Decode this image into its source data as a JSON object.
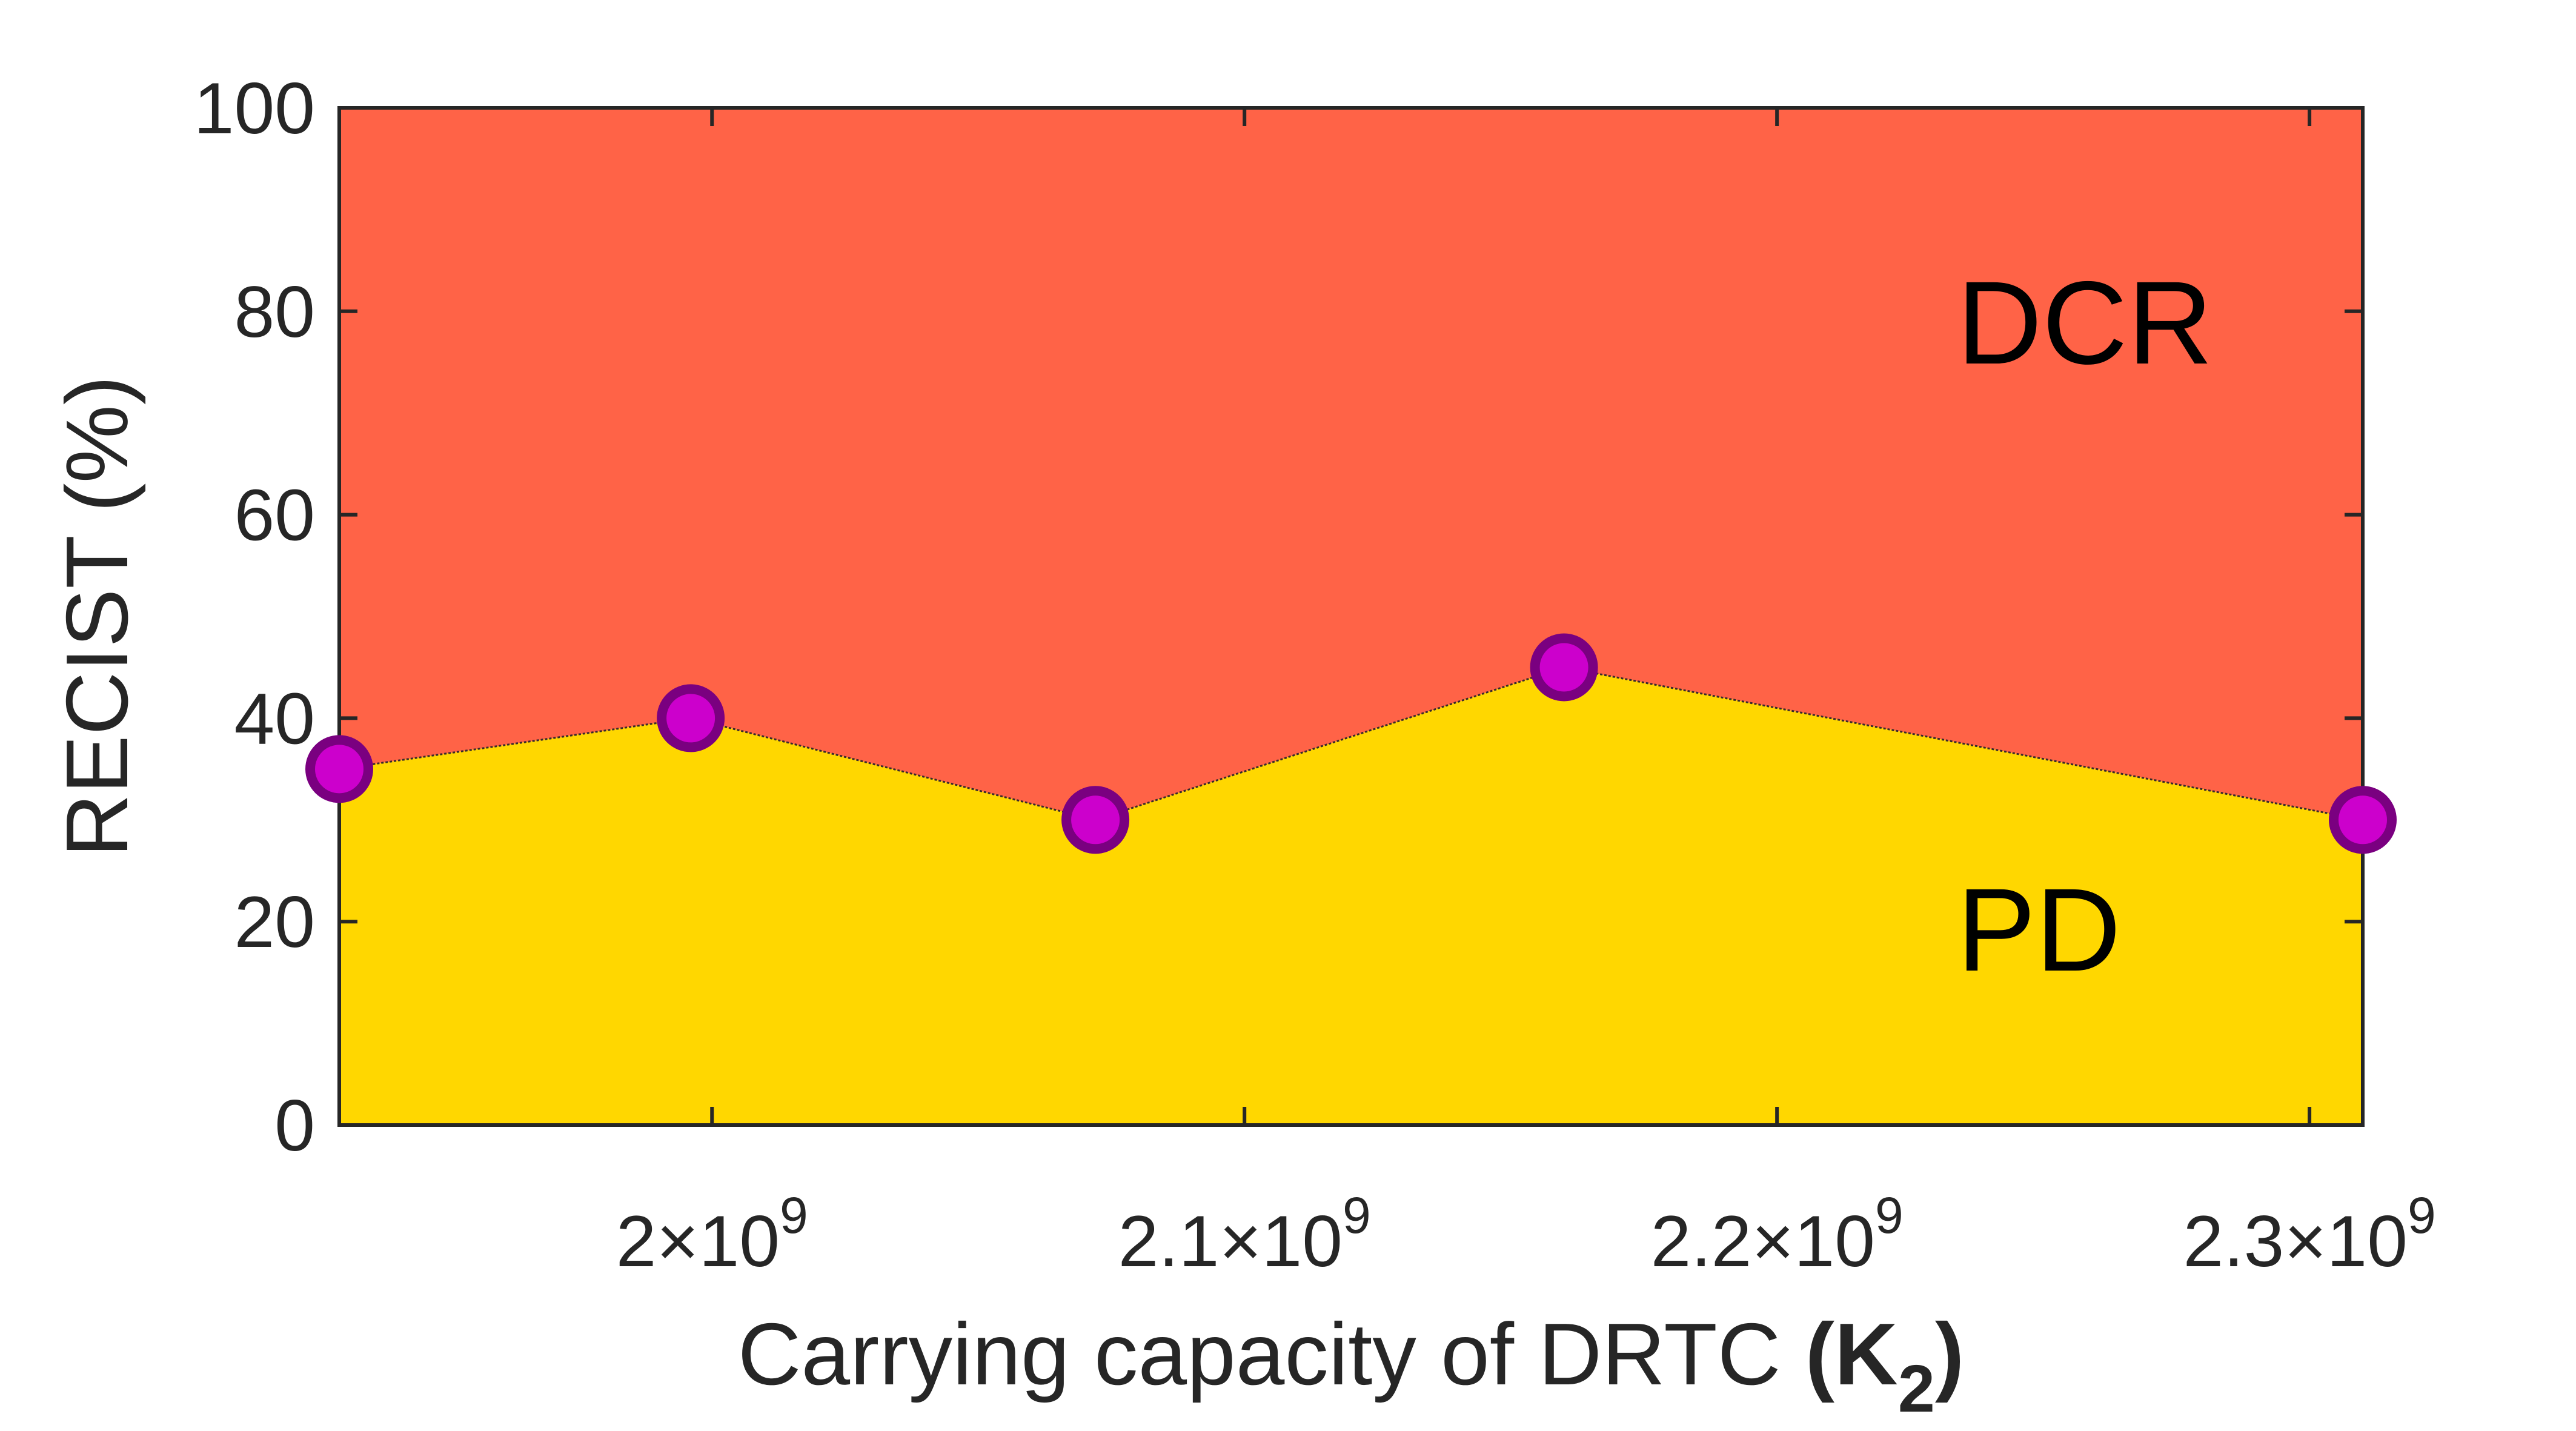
{
  "chart_data": {
    "type": "area",
    "xlabel": "Carrying capacity of DRTC",
    "xlabel_symbol": "K",
    "xlabel_subscript": "2",
    "ylabel": "RECIST (%)",
    "ylim": [
      0,
      100
    ],
    "xlim": [
      1930000000,
      2310000000
    ],
    "yticks": [
      0,
      20,
      40,
      60,
      80,
      100
    ],
    "xticks": [
      {
        "value": 2000000000,
        "mantissa": "2",
        "exponent": "9"
      },
      {
        "value": 2100000000,
        "mantissa": "2.1",
        "exponent": "9"
      },
      {
        "value": 2200000000,
        "mantissa": "2.2",
        "exponent": "9"
      },
      {
        "value": 2300000000,
        "mantissa": "2.3",
        "exponent": "9"
      }
    ],
    "times_sign": "×",
    "x": [
      1930000000,
      1996000000,
      2072000000,
      2160000000,
      2310000000
    ],
    "series": [
      {
        "name": "PD",
        "values": [
          35,
          40,
          30,
          45,
          30
        ],
        "color": "#FFD700"
      },
      {
        "name": "DCR",
        "values": [
          65,
          60,
          70,
          55,
          70
        ],
        "color": "#FF6347"
      }
    ],
    "marker_color": "#CC00CC",
    "marker_edge_color": "#7A0080",
    "region_labels": {
      "upper": "DCR",
      "lower": "PD"
    },
    "grid": false
  }
}
